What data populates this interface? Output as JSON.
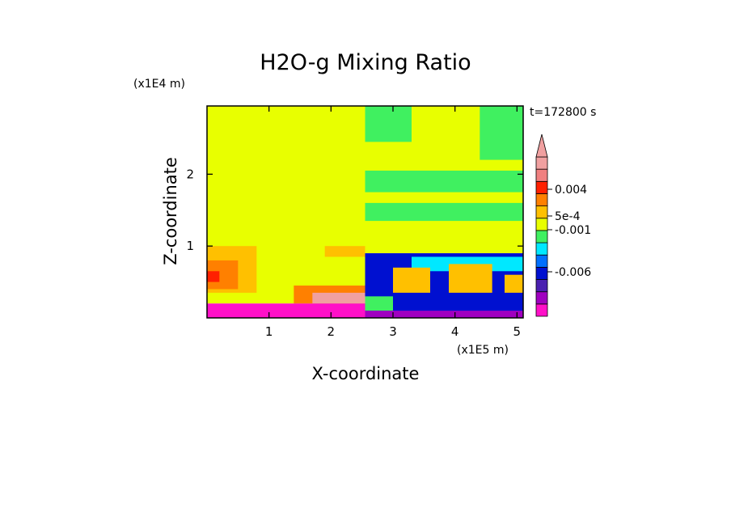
{
  "chart_data": {
    "type": "heatmap",
    "title": "H2O-g Mixing Ratio",
    "xlabel": "X-coordinate",
    "ylabel": "Z-coordinate",
    "x_unit": "(x1E5 m)",
    "y_unit": "(x1E4 m)",
    "time_label": "t=172800 s",
    "xlim": [
      0,
      5.1
    ],
    "ylim": [
      0,
      2.95
    ],
    "x_ticks": [
      {
        "value": 1,
        "label": "1"
      },
      {
        "value": 2,
        "label": "2"
      },
      {
        "value": 3,
        "label": "3"
      },
      {
        "value": 4,
        "label": "4"
      },
      {
        "value": 5,
        "label": "5"
      }
    ],
    "y_ticks": [
      {
        "value": 1,
        "label": "1"
      },
      {
        "value": 2,
        "label": "2"
      }
    ],
    "colorbar": {
      "colors": [
        "#ff10c8",
        "#a000c0",
        "#4a20b0",
        "#0010d0",
        "#0070ff",
        "#00e8ff",
        "#40f060",
        "#e8ff00",
        "#ffc000",
        "#ff8000",
        "#ff2000",
        "#f08080",
        "#f0a0a0"
      ],
      "labels": [
        "-0.006",
        "-0.001",
        "5e-4",
        "0.004"
      ]
    },
    "regions": [
      {
        "color": "#e8ff00",
        "x": [
          0,
          2.55
        ],
        "z": [
          0.2,
          2.95
        ]
      },
      {
        "color": "#ffc000",
        "x": [
          0,
          0.8
        ],
        "z": [
          0.35,
          1.0
        ]
      },
      {
        "color": "#ff8000",
        "x": [
          0,
          0.5
        ],
        "z": [
          0.4,
          0.8
        ]
      },
      {
        "color": "#ff2000",
        "x": [
          0,
          0.2
        ],
        "z": [
          0.5,
          0.65
        ]
      },
      {
        "color": "#ffc000",
        "x": [
          1.9,
          2.55
        ],
        "z": [
          0.85,
          1.0
        ]
      },
      {
        "color": "#ff8000",
        "x": [
          1.4,
          2.55
        ],
        "z": [
          0.2,
          0.45
        ]
      },
      {
        "color": "#f0a0a0",
        "x": [
          1.7,
          2.55
        ],
        "z": [
          0.2,
          0.35
        ]
      },
      {
        "color": "#ff10c8",
        "x": [
          0,
          2.55
        ],
        "z": [
          0,
          0.2
        ]
      },
      {
        "color": "#e8ff00",
        "x": [
          2.55,
          5.1
        ],
        "z": [
          0.9,
          2.95
        ]
      },
      {
        "color": "#40f060",
        "x": [
          2.55,
          3.3
        ],
        "z": [
          2.45,
          2.95
        ]
      },
      {
        "color": "#40f060",
        "x": [
          4.4,
          5.1
        ],
        "z": [
          2.2,
          2.95
        ]
      },
      {
        "color": "#40f060",
        "x": [
          2.55,
          5.1
        ],
        "z": [
          1.75,
          2.05
        ]
      },
      {
        "color": "#40f060",
        "x": [
          2.55,
          5.1
        ],
        "z": [
          1.35,
          1.6
        ]
      },
      {
        "color": "#0010d0",
        "x": [
          2.55,
          5.1
        ],
        "z": [
          0,
          0.9
        ]
      },
      {
        "color": "#00e8ff",
        "x": [
          3.3,
          5.1
        ],
        "z": [
          0.65,
          0.85
        ]
      },
      {
        "color": "#ffc000",
        "x": [
          3.0,
          3.6
        ],
        "z": [
          0.35,
          0.7
        ]
      },
      {
        "color": "#ffc000",
        "x": [
          3.9,
          4.6
        ],
        "z": [
          0.35,
          0.75
        ]
      },
      {
        "color": "#ffc000",
        "x": [
          4.8,
          5.1
        ],
        "z": [
          0.35,
          0.6
        ]
      },
      {
        "color": "#40f060",
        "x": [
          2.55,
          3.0
        ],
        "z": [
          0.1,
          0.3
        ]
      },
      {
        "color": "#a000c0",
        "x": [
          2.55,
          5.1
        ],
        "z": [
          0,
          0.1
        ]
      }
    ]
  }
}
